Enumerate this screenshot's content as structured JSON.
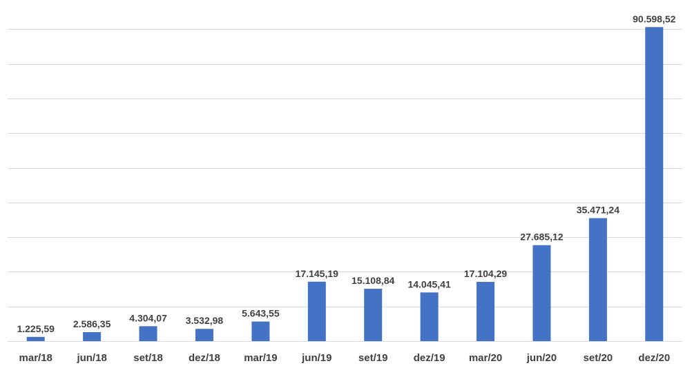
{
  "chart_data": {
    "type": "bar",
    "categories": [
      "mar/18",
      "jun/18",
      "set/18",
      "dez/18",
      "mar/19",
      "jun/19",
      "set/19",
      "dez/19",
      "mar/20",
      "jun/20",
      "set/20",
      "dez/20"
    ],
    "values": [
      1225.59,
      2586.35,
      4304.07,
      3532.98,
      5643.55,
      17145.19,
      15108.84,
      14045.41,
      17104.29,
      27685.12,
      35471.24,
      90598.52
    ],
    "data_labels": [
      "1.225,59",
      "2.586,35",
      "4.304,07",
      "3.532,98",
      "5.643,55",
      "17.145,19",
      "15.108,84",
      "14.045,41",
      "17.104,29",
      "27.685,12",
      "35.471,24",
      "90.598,52"
    ],
    "ylim": [
      0,
      90000
    ],
    "grid": true,
    "bar_color": "#4472c4",
    "label_color": "#404040",
    "grid_color": "#d9d9d9"
  }
}
